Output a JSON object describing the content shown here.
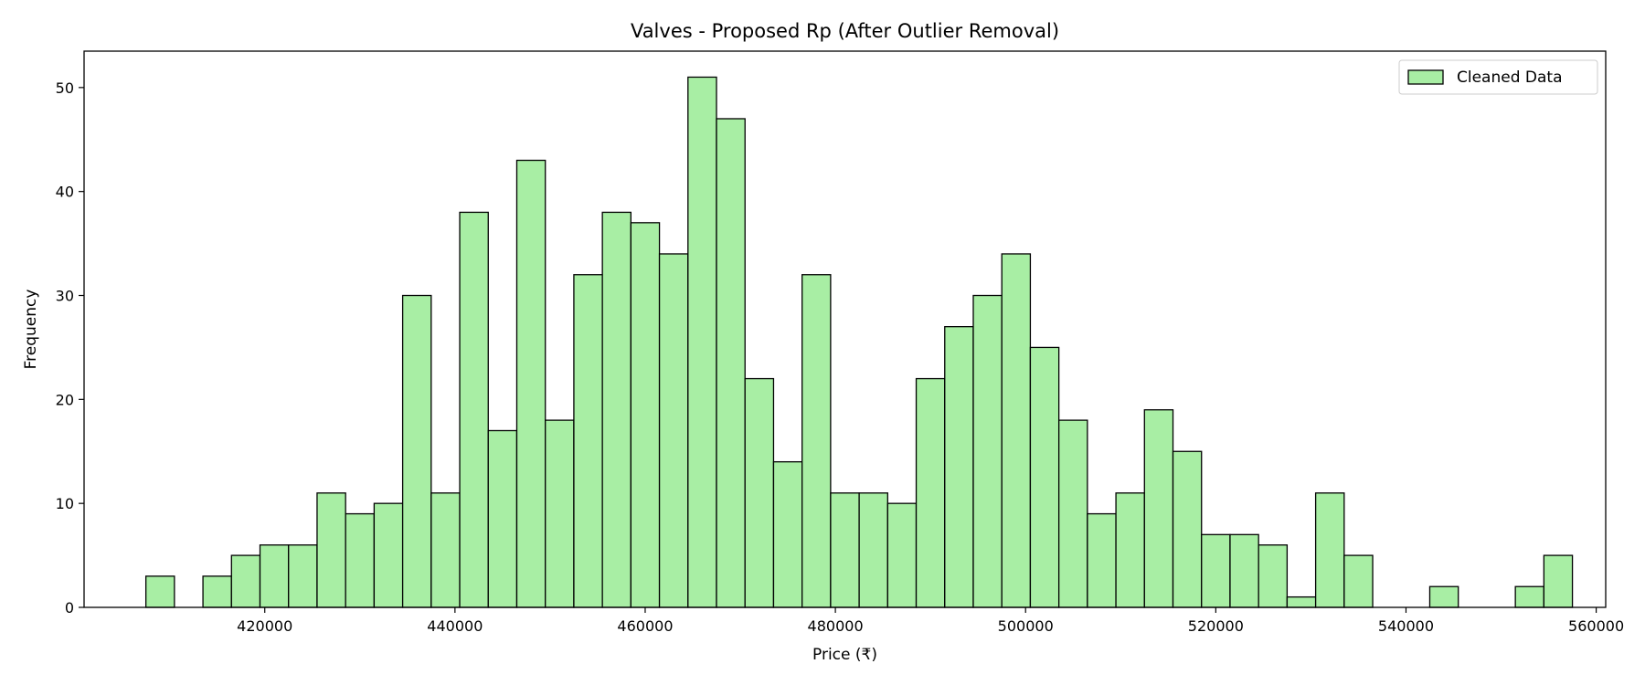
{
  "chart_data": {
    "type": "bar",
    "title": "Valves - Proposed Rp (After Outlier Removal)",
    "xlabel": "Price (₹)",
    "ylabel": "Frequency",
    "xlim": [
      401000,
      561000
    ],
    "ylim": [
      0,
      53.5
    ],
    "x_ticks": [
      420000,
      440000,
      460000,
      480000,
      500000,
      520000,
      540000,
      560000
    ],
    "y_ticks": [
      0,
      10,
      20,
      30,
      40,
      50
    ],
    "bin_start": 407500,
    "bin_width": 3000,
    "values": [
      3,
      0,
      3,
      5,
      6,
      6,
      11,
      9,
      10,
      30,
      11,
      38,
      17,
      43,
      18,
      32,
      38,
      37,
      34,
      51,
      47,
      22,
      14,
      32,
      11,
      11,
      10,
      22,
      27,
      30,
      34,
      25,
      18,
      9,
      11,
      19,
      15,
      7,
      7,
      6,
      1,
      11,
      5,
      0,
      0,
      2,
      0,
      0,
      2,
      5
    ],
    "grid": false,
    "legend": {
      "position": "top-right",
      "entries": [
        "Cleaned Data"
      ]
    },
    "colors": {
      "fill": "#a8eea4",
      "edge": "#000000"
    }
  }
}
